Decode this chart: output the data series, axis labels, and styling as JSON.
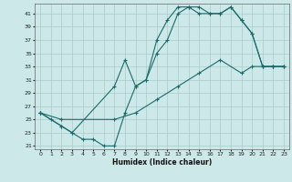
{
  "xlabel": "Humidex (Indice chaleur)",
  "xlim": [
    0,
    23
  ],
  "ylim": [
    21,
    42
  ],
  "xticks": [
    0,
    1,
    2,
    3,
    4,
    5,
    6,
    7,
    8,
    9,
    10,
    11,
    12,
    13,
    14,
    15,
    16,
    17,
    18,
    19,
    20,
    21,
    22,
    23
  ],
  "yticks": [
    21,
    23,
    25,
    27,
    29,
    31,
    33,
    35,
    37,
    39,
    41
  ],
  "background_color": "#cce8e8",
  "grid_color": "#aacccc",
  "line_color": "#1a6b6b",
  "line1_x": [
    0,
    1,
    2,
    3,
    4,
    5,
    6,
    7,
    8,
    9,
    10,
    11,
    12,
    13,
    14,
    15,
    16,
    17,
    18,
    19,
    20,
    21,
    22,
    23
  ],
  "line1_y": [
    26,
    25,
    24,
    23,
    22,
    22,
    21,
    21,
    26,
    30,
    31,
    35,
    37,
    41,
    42,
    42,
    41,
    41,
    42,
    40,
    38,
    33,
    33,
    33
  ],
  "line2_x": [
    0,
    2,
    3,
    7,
    8,
    9,
    10,
    11,
    12,
    13,
    14,
    15,
    16,
    17,
    18,
    19,
    20,
    21,
    22,
    23
  ],
  "line2_y": [
    26,
    24,
    23,
    30,
    34,
    30,
    31,
    37,
    40,
    42,
    42,
    41,
    41,
    41,
    42,
    40,
    38,
    33,
    33,
    33
  ],
  "line3_x": [
    0,
    2,
    7,
    9,
    11,
    13,
    15,
    17,
    19,
    20,
    21,
    22,
    23
  ],
  "line3_y": [
    26,
    25,
    25,
    26,
    28,
    30,
    32,
    34,
    32,
    33,
    33,
    33,
    33
  ],
  "figsize": [
    3.2,
    2.0
  ],
  "dpi": 100
}
